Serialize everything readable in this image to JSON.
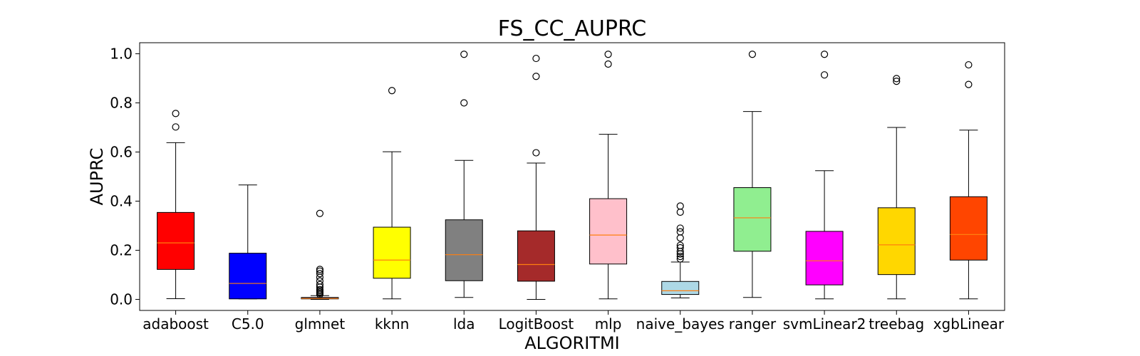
{
  "chart_data": {
    "type": "boxplot",
    "title": "FS_CC_AUPRC",
    "xlabel": "ALGORITMI",
    "ylabel": "AUPRC",
    "ylim": [
      -0.045,
      1.045
    ],
    "yticks": [
      0.0,
      0.2,
      0.4,
      0.6,
      0.8,
      1.0
    ],
    "ytick_labels": [
      "0.0",
      "0.2",
      "0.4",
      "0.6",
      "0.8",
      "1.0"
    ],
    "grid": false,
    "legend": "none",
    "median_color": "#ff7f0e",
    "categories": [
      "adaboost",
      "C5.0",
      "glmnet",
      "kknn",
      "lda",
      "LogitBoost",
      "mlp",
      "naive_bayes",
      "ranger",
      "svmLinear2",
      "treebag",
      "xgbLinear"
    ],
    "boxes": [
      {
        "name": "adaboost",
        "color": "#ff0000",
        "whisker_low": 0.003,
        "q1": 0.122,
        "median": 0.23,
        "q3": 0.354,
        "whisker_high": 0.638,
        "outliers": [
          0.702,
          0.757
        ]
      },
      {
        "name": "C5.0",
        "color": "#0000ff",
        "whisker_low": 0.002,
        "q1": 0.002,
        "median": 0.065,
        "q3": 0.188,
        "whisker_high": 0.466,
        "outliers": []
      },
      {
        "name": "glmnet",
        "color": "#1f3fbf",
        "whisker_low": 0.0,
        "q1": 0.002,
        "median": 0.004,
        "q3": 0.008,
        "whisker_high": 0.015,
        "outliers": [
          0.02,
          0.025,
          0.03,
          0.035,
          0.04,
          0.05,
          0.06,
          0.075,
          0.09,
          0.105,
          0.115,
          0.122,
          0.35
        ]
      },
      {
        "name": "kknn",
        "color": "#ffff00",
        "whisker_low": 0.002,
        "q1": 0.086,
        "median": 0.16,
        "q3": 0.294,
        "whisker_high": 0.601,
        "outliers": [
          0.85
        ]
      },
      {
        "name": "lda",
        "color": "#808080",
        "whisker_low": 0.008,
        "q1": 0.076,
        "median": 0.182,
        "q3": 0.324,
        "whisker_high": 0.566,
        "outliers": [
          0.8,
          0.998
        ]
      },
      {
        "name": "LogitBoost",
        "color": "#a52a2a",
        "whisker_low": 0.0,
        "q1": 0.074,
        "median": 0.142,
        "q3": 0.279,
        "whisker_high": 0.555,
        "outliers": [
          0.597,
          0.908,
          0.981
        ]
      },
      {
        "name": "mlp",
        "color": "#ffc0cb",
        "whisker_low": 0.002,
        "q1": 0.144,
        "median": 0.262,
        "q3": 0.41,
        "whisker_high": 0.672,
        "outliers": [
          0.958,
          0.998
        ]
      },
      {
        "name": "naive_bayes",
        "color": "#add8e6",
        "whisker_low": 0.006,
        "q1": 0.02,
        "median": 0.035,
        "q3": 0.073,
        "whisker_high": 0.152,
        "outliers": [
          0.165,
          0.175,
          0.185,
          0.195,
          0.21,
          0.22,
          0.25,
          0.275,
          0.29,
          0.355,
          0.38
        ]
      },
      {
        "name": "ranger",
        "color": "#90ee90",
        "whisker_low": 0.008,
        "q1": 0.196,
        "median": 0.332,
        "q3": 0.455,
        "whisker_high": 0.765,
        "outliers": [
          0.998
        ]
      },
      {
        "name": "svmLinear2",
        "color": "#ff00ff",
        "whisker_low": 0.002,
        "q1": 0.059,
        "median": 0.157,
        "q3": 0.277,
        "whisker_high": 0.524,
        "outliers": [
          0.914,
          0.998
        ]
      },
      {
        "name": "treebag",
        "color": "#ffd700",
        "whisker_low": 0.002,
        "q1": 0.101,
        "median": 0.222,
        "q3": 0.373,
        "whisker_high": 0.7,
        "outliers": [
          0.888,
          0.899
        ]
      },
      {
        "name": "xgbLinear",
        "color": "#ff4500",
        "whisker_low": 0.002,
        "q1": 0.16,
        "median": 0.264,
        "q3": 0.418,
        "whisker_high": 0.689,
        "outliers": [
          0.875,
          0.955
        ]
      }
    ]
  }
}
